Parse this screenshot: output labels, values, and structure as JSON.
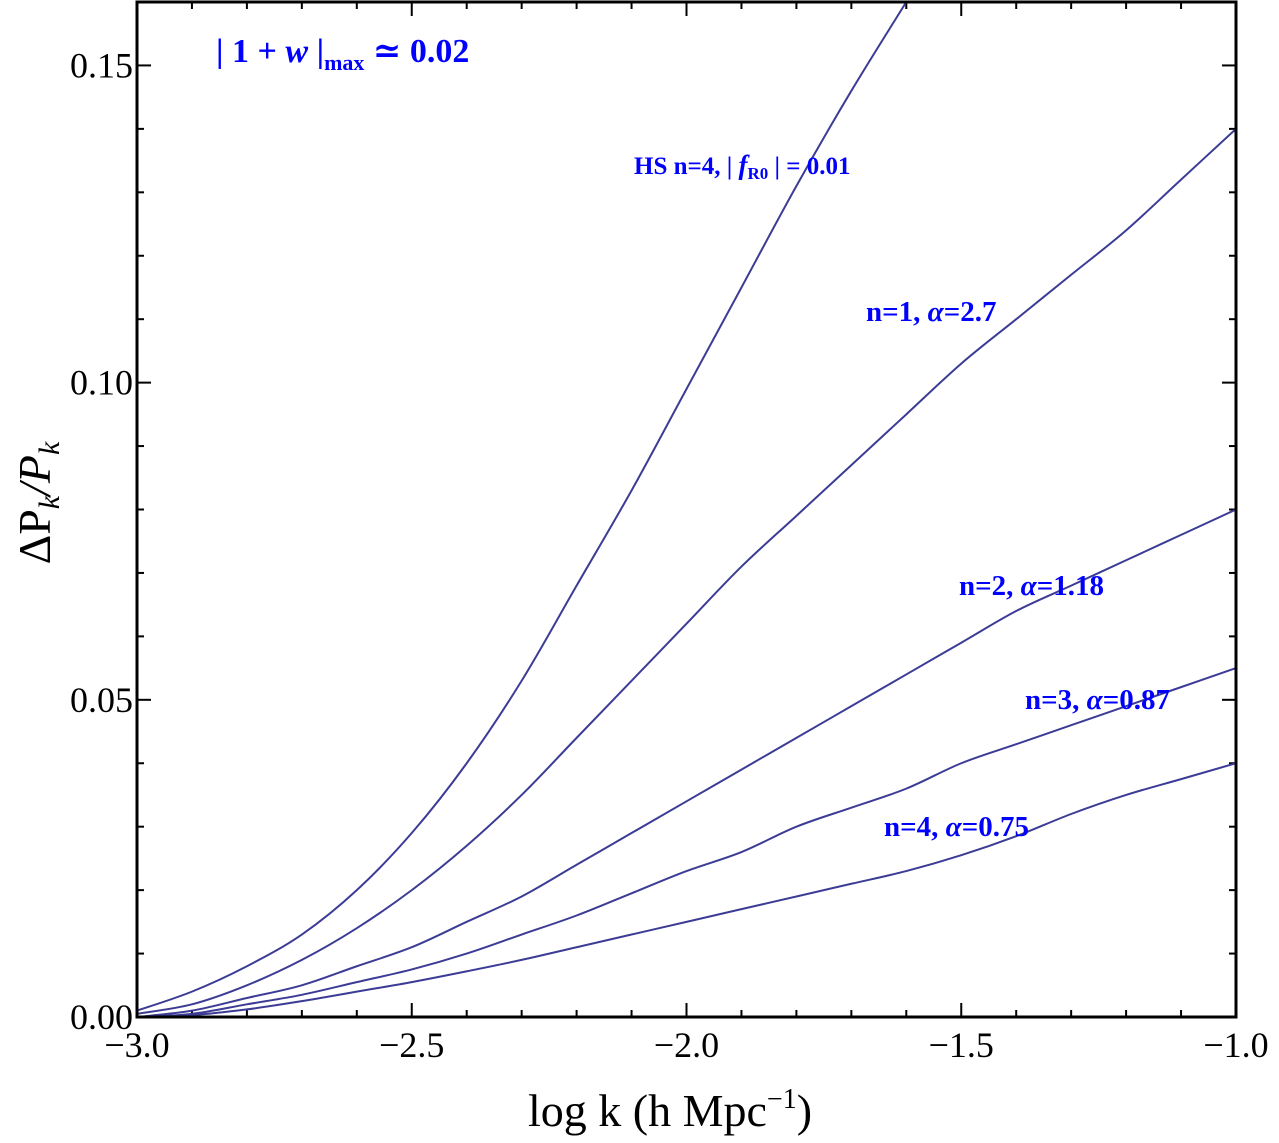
{
  "chart_data": {
    "type": "line",
    "title": "",
    "xlabel": "log k (h Mpc",
    "xlabel_sup": "−1",
    "xlabel_close": ")",
    "ylabel_delta": "ΔP",
    "ylabel_k1": "k",
    "ylabel_slash": "/",
    "ylabel_p": "P",
    "ylabel_k2": "k",
    "xlim": [
      -3.0,
      -1.0
    ],
    "ylim": [
      0.0,
      0.16
    ],
    "xticks": [
      -3.0,
      -2.5,
      -2.0,
      -1.5,
      -1.0
    ],
    "xtick_labels": [
      "−3.0",
      "−2.5",
      "−2.0",
      "−1.5",
      "−1.0"
    ],
    "yticks": [
      0.0,
      0.05,
      0.1,
      0.15
    ],
    "ytick_labels": [
      "0.00",
      "0.05",
      "0.10",
      "0.15"
    ],
    "grid": false,
    "line_color": "#3c3c96",
    "label_color": "#0000ff",
    "annotation": {
      "part1": "| 1 + ",
      "w": "w",
      "part2": " |",
      "sub": "max",
      "part3": "  ≃ 0.02"
    },
    "series": [
      {
        "name": "HS n=4, |fR0| = 0.01",
        "label_pre": "HS n=4, | ",
        "label_f": "f",
        "label_sub": "R0",
        "label_post": " |  = 0.01",
        "x": [
          -3.0,
          -2.9,
          -2.8,
          -2.7,
          -2.6,
          -2.5,
          -2.4,
          -2.3,
          -2.2,
          -2.1,
          -2.0,
          -1.9,
          -1.8,
          -1.7,
          -1.6
        ],
        "values": [
          0.001,
          0.004,
          0.008,
          0.013,
          0.02,
          0.029,
          0.04,
          0.053,
          0.068,
          0.083,
          0.099,
          0.115,
          0.131,
          0.146,
          0.16
        ]
      },
      {
        "name": "n=1, α=2.7",
        "label_pre": "n=1, ",
        "label_alpha": "α",
        "label_post": "=2.7",
        "x": [
          -3.0,
          -2.9,
          -2.8,
          -2.7,
          -2.6,
          -2.5,
          -2.4,
          -2.3,
          -2.2,
          -2.1,
          -2.0,
          -1.9,
          -1.8,
          -1.7,
          -1.6,
          -1.5,
          -1.4,
          -1.3,
          -1.2,
          -1.1,
          -1.0
        ],
        "values": [
          0.0005,
          0.002,
          0.005,
          0.009,
          0.014,
          0.02,
          0.027,
          0.035,
          0.044,
          0.053,
          0.062,
          0.071,
          0.079,
          0.087,
          0.095,
          0.103,
          0.11,
          0.117,
          0.124,
          0.132,
          0.14
        ]
      },
      {
        "name": "n=2, α=1.18",
        "label_pre": "n=2, ",
        "label_alpha": "α",
        "label_post": "=1.18",
        "x": [
          -3.0,
          -2.9,
          -2.8,
          -2.7,
          -2.6,
          -2.5,
          -2.4,
          -2.3,
          -2.2,
          -2.1,
          -2.0,
          -1.9,
          -1.8,
          -1.7,
          -1.6,
          -1.5,
          -1.4,
          -1.3,
          -1.2,
          -1.1,
          -1.0
        ],
        "values": [
          0.0,
          0.001,
          0.003,
          0.005,
          0.008,
          0.011,
          0.015,
          0.019,
          0.024,
          0.029,
          0.034,
          0.039,
          0.044,
          0.049,
          0.054,
          0.059,
          0.064,
          0.068,
          0.072,
          0.076,
          0.08
        ]
      },
      {
        "name": "n=3, α=0.87",
        "label_pre": "n=3, ",
        "label_alpha": "α",
        "label_post": "=0.87",
        "x": [
          -3.0,
          -2.9,
          -2.8,
          -2.7,
          -2.6,
          -2.5,
          -2.4,
          -2.3,
          -2.2,
          -2.1,
          -2.0,
          -1.9,
          -1.8,
          -1.7,
          -1.6,
          -1.5,
          -1.4,
          -1.3,
          -1.2,
          -1.1,
          -1.0
        ],
        "values": [
          0.0,
          0.0005,
          0.002,
          0.0035,
          0.0055,
          0.0075,
          0.01,
          0.013,
          0.016,
          0.0195,
          0.023,
          0.026,
          0.03,
          0.033,
          0.036,
          0.04,
          0.043,
          0.046,
          0.049,
          0.052,
          0.055
        ]
      },
      {
        "name": "n=4, α=0.75",
        "label_pre": "n=4, ",
        "label_alpha": "α",
        "label_post": "=0.75",
        "x": [
          -3.0,
          -2.9,
          -2.8,
          -2.7,
          -2.6,
          -2.5,
          -2.4,
          -2.3,
          -2.2,
          -2.1,
          -2.0,
          -1.9,
          -1.8,
          -1.7,
          -1.6,
          -1.5,
          -1.4,
          -1.3,
          -1.2,
          -1.1,
          -1.0
        ],
        "values": [
          0.0,
          0.0003,
          0.0012,
          0.0025,
          0.004,
          0.0055,
          0.0072,
          0.009,
          0.011,
          0.013,
          0.015,
          0.017,
          0.019,
          0.021,
          0.023,
          0.0255,
          0.0285,
          0.032,
          0.035,
          0.0375,
          0.04
        ]
      }
    ]
  }
}
